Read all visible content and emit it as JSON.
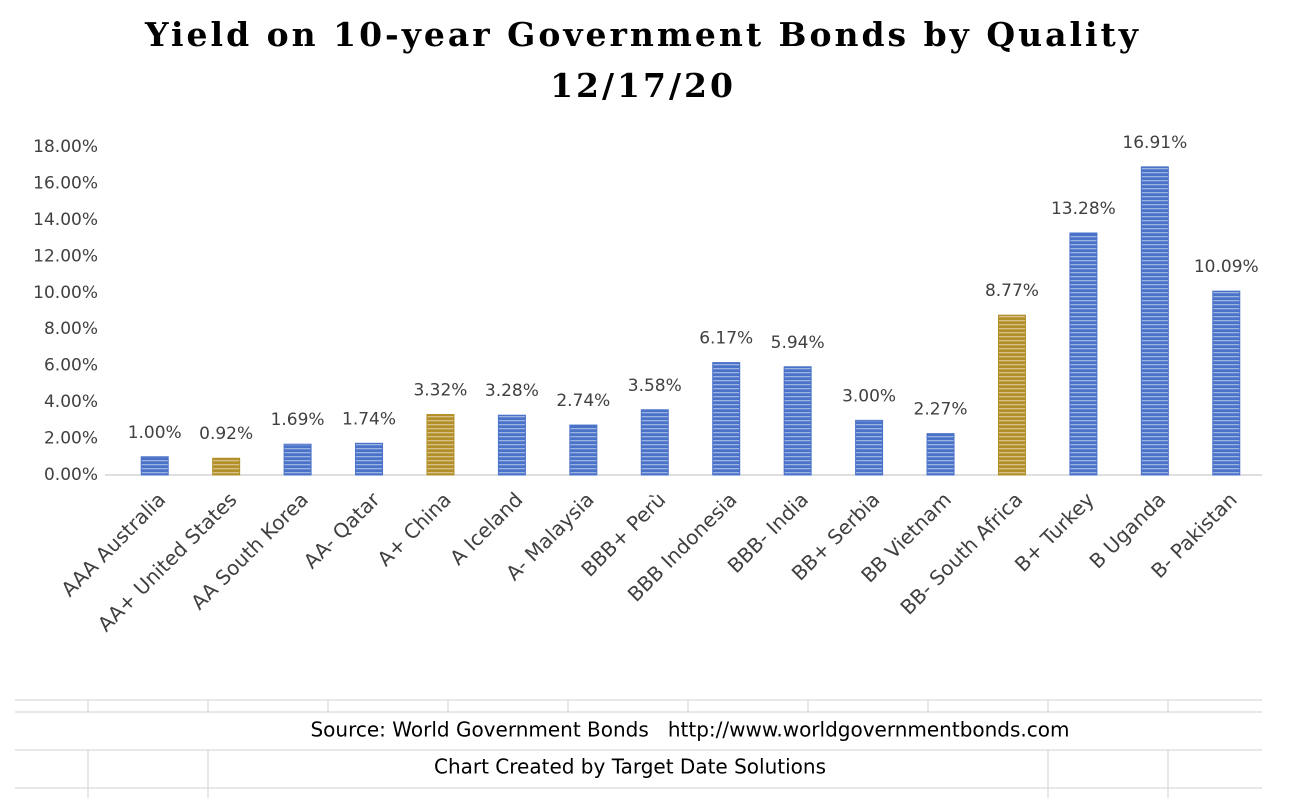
{
  "chart_data": {
    "type": "bar",
    "title": "Yield on 10-year Government Bonds by Quality",
    "subtitle": "12/17/20",
    "categories": [
      "AAA Australia",
      "AA+ United States",
      "AA South Korea",
      "AA- Qatar",
      "A+ China",
      "A Iceland",
      "A- Malaysia",
      "BBB+ Perù",
      "BBB Indonesia",
      "BBB- India",
      "BB+ Serbia",
      "BB Vietnam",
      "BB- South Africa",
      "B+ Turkey",
      "B Uganda",
      "B- Pakistan"
    ],
    "values": [
      1.0,
      0.92,
      1.69,
      1.74,
      3.32,
      3.28,
      2.74,
      3.58,
      6.17,
      5.94,
      3.0,
      2.27,
      8.77,
      13.28,
      16.91,
      10.09
    ],
    "value_labels": [
      "1.00%",
      "0.92%",
      "1.69%",
      "1.74%",
      "3.32%",
      "3.28%",
      "2.74%",
      "3.58%",
      "6.17%",
      "5.94%",
      "3.00%",
      "2.27%",
      "8.77%",
      "13.28%",
      "16.91%",
      "10.09%"
    ],
    "colors": [
      "#4a72c8",
      "#b38f2a",
      "#4a72c8",
      "#4a72c8",
      "#b38f2a",
      "#4a72c8",
      "#4a72c8",
      "#4a72c8",
      "#4a72c8",
      "#4a72c8",
      "#4a72c8",
      "#4a72c8",
      "#b38f2a",
      "#4a72c8",
      "#4a72c8",
      "#4a72c8"
    ],
    "ylim": [
      0,
      18
    ],
    "yticks": [
      {
        "value": 0,
        "label": "0.00%"
      },
      {
        "value": 2,
        "label": "2.00%"
      },
      {
        "value": 4,
        "label": "4.00%"
      },
      {
        "value": 6,
        "label": "6.00%"
      },
      {
        "value": 8,
        "label": "8.00%"
      },
      {
        "value": 10,
        "label": "10.00%"
      },
      {
        "value": 12,
        "label": "12.00%"
      },
      {
        "value": 14,
        "label": "14.00%"
      },
      {
        "value": 16,
        "label": "16.00%"
      },
      {
        "value": 18,
        "label": "18.00%"
      }
    ],
    "grid": false,
    "source": "Source: World Government Bonds   http://www.worldgovernmentbonds.com",
    "credit": "Chart Created by Target Date Solutions"
  }
}
